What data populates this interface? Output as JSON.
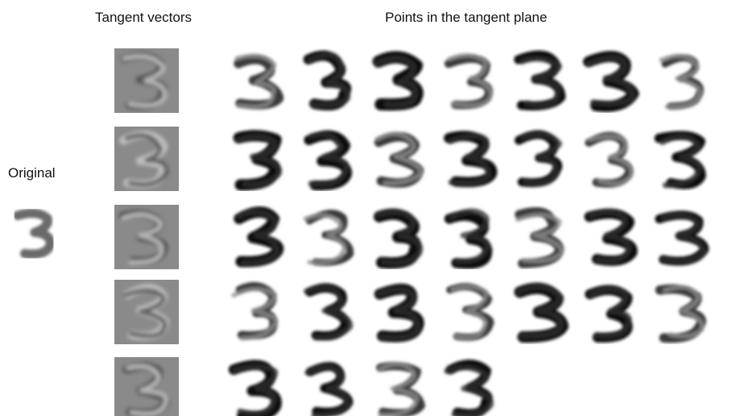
{
  "titles": {
    "tangent_vectors": "Tangent vectors",
    "points_in_plane": "Points in the tangent plane",
    "original": "Original"
  },
  "glyph": "3",
  "colors": {
    "background": "#ffffff",
    "tangent_bg": "#8a8a8a",
    "ink_dark": "#0a0a0a",
    "ink_mid": "#6a6a6a"
  },
  "tangent_vectors": [
    {
      "name": "tangent-vector-1"
    },
    {
      "name": "tangent-vector-2"
    },
    {
      "name": "tangent-vector-3"
    },
    {
      "name": "tangent-vector-4"
    },
    {
      "name": "tangent-vector-5"
    }
  ],
  "points": [
    [
      1,
      2,
      3,
      4,
      5,
      6,
      7
    ],
    [
      8,
      9,
      10,
      11,
      12,
      13,
      14
    ],
    [
      15,
      16,
      17,
      18,
      19,
      20,
      21
    ],
    [
      22,
      23,
      24,
      25,
      26,
      27,
      28
    ],
    [
      29,
      30,
      31,
      32
    ]
  ]
}
